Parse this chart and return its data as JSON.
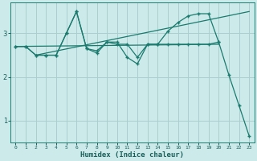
{
  "background_color": "#cceaea",
  "grid_color": "#aacece",
  "line_color": "#1a7a6e",
  "xlabel": "Humidex (Indice chaleur)",
  "xlim": [
    -0.5,
    23.5
  ],
  "ylim": [
    0.5,
    3.7
  ],
  "yticks": [
    1,
    2,
    3
  ],
  "xticks": [
    0,
    1,
    2,
    3,
    4,
    5,
    6,
    7,
    8,
    9,
    10,
    11,
    12,
    13,
    14,
    15,
    16,
    17,
    18,
    19,
    20,
    21,
    22,
    23
  ],
  "series_zigzag_x": [
    0,
    1,
    2,
    3,
    4,
    5,
    6,
    7,
    8,
    9,
    10,
    11,
    12,
    13,
    14,
    15,
    16,
    17,
    18,
    19,
    20
  ],
  "series_zigzag_y": [
    2.7,
    2.7,
    2.5,
    2.5,
    2.5,
    3.0,
    3.5,
    2.65,
    2.55,
    2.8,
    2.75,
    2.75,
    2.45,
    2.75,
    2.75,
    2.75,
    2.75,
    2.75,
    2.75,
    2.75,
    2.8
  ],
  "series_drop_x": [
    0,
    1,
    2,
    3,
    4,
    5,
    6,
    7,
    8,
    9,
    10,
    11,
    12,
    13,
    14,
    15,
    16,
    17,
    18,
    19,
    20,
    21,
    22,
    23
  ],
  "series_drop_y": [
    2.7,
    2.7,
    2.5,
    2.5,
    2.5,
    3.0,
    3.5,
    2.65,
    2.6,
    2.8,
    2.8,
    2.45,
    2.3,
    2.75,
    2.75,
    3.05,
    3.25,
    3.4,
    3.45,
    3.45,
    2.8,
    2.05,
    1.35,
    0.65
  ],
  "trend1_x": [
    0,
    20
  ],
  "trend1_y": [
    2.7,
    2.75
  ],
  "trend2_x": [
    2,
    23
  ],
  "trend2_y": [
    2.5,
    3.5
  ]
}
